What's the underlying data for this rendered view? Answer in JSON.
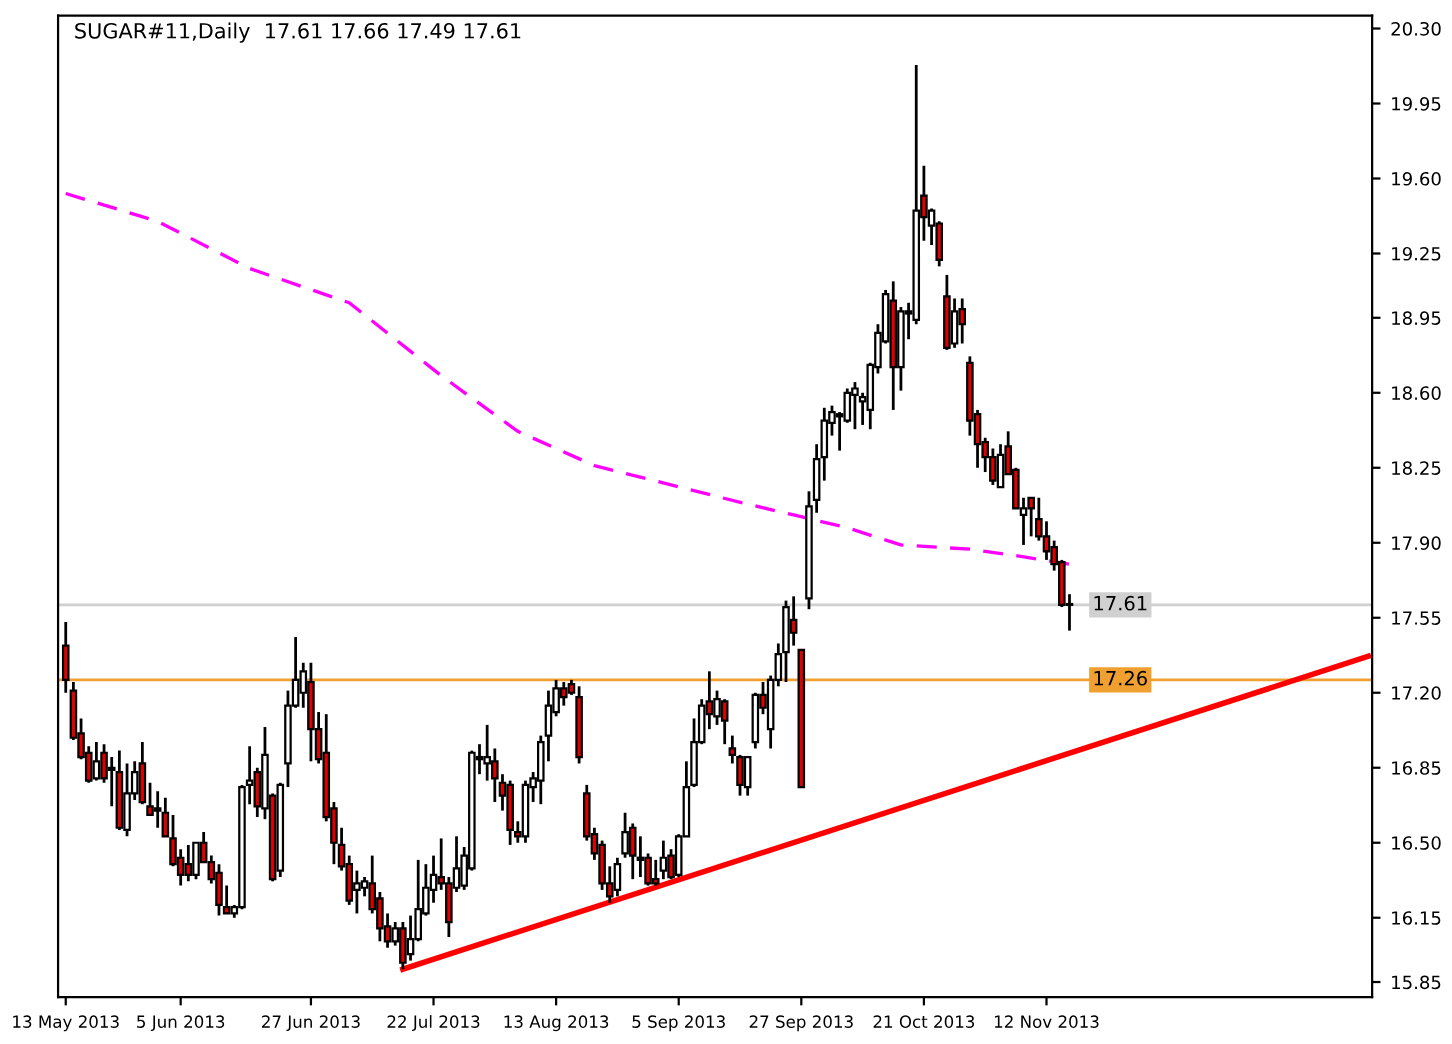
{
  "chart_data": {
    "type": "candlestick",
    "title": "SUGAR#11,Daily  17.61 17.66 17.49 17.61",
    "categories": [
      "13 May 2013",
      null,
      null,
      null,
      null,
      null,
      null,
      null,
      null,
      null,
      null,
      null,
      null,
      null,
      null,
      "5 Jun 2013",
      null,
      null,
      null,
      null,
      null,
      null,
      null,
      null,
      null,
      null,
      null,
      null,
      null,
      null,
      null,
      null,
      "27 Jun 2013",
      null,
      null,
      null,
      null,
      null,
      null,
      null,
      null,
      null,
      null,
      null,
      null,
      null,
      null,
      null,
      "22 Jul 2013",
      null,
      null,
      null,
      null,
      null,
      null,
      null,
      null,
      null,
      null,
      null,
      null,
      null,
      null,
      null,
      "13 Aug 2013",
      null,
      null,
      null,
      null,
      null,
      null,
      null,
      null,
      null,
      null,
      null,
      null,
      null,
      null,
      null,
      "5 Sep 2013",
      null,
      null,
      null,
      null,
      null,
      null,
      null,
      null,
      null,
      null,
      null,
      null,
      null,
      null,
      null,
      "27 Sep 2013",
      null,
      null,
      null,
      null,
      null,
      null,
      null,
      null,
      null,
      null,
      null,
      null,
      null,
      null,
      null,
      "21 Oct 2013",
      null,
      null,
      null,
      null,
      null,
      null,
      null,
      null,
      null,
      null,
      null,
      null,
      null,
      null,
      null,
      "12 Nov 2013",
      null,
      null,
      null,
      null,
      null,
      null,
      null,
      null,
      null,
      null,
      null,
      null,
      null,
      null,
      null,
      null,
      null,
      null,
      null,
      null,
      null,
      null,
      null,
      null,
      null,
      null,
      null,
      null,
      null,
      null,
      null,
      null,
      null,
      null,
      null,
      null,
      null,
      null,
      null,
      null,
      null,
      null
    ],
    "ohlc": [
      [
        17.42,
        17.53,
        17.2,
        17.26
      ],
      [
        17.21,
        17.25,
        16.98,
        16.99
      ],
      [
        17.01,
        17.08,
        16.89,
        16.9
      ],
      [
        16.92,
        16.95,
        16.78,
        16.79
      ],
      [
        16.8,
        16.97,
        16.79,
        16.88
      ],
      [
        16.92,
        16.96,
        16.78,
        16.8
      ],
      [
        16.84,
        16.9,
        16.67,
        16.85
      ],
      [
        16.83,
        16.93,
        16.56,
        16.57
      ],
      [
        16.56,
        16.87,
        16.53,
        16.73
      ],
      [
        16.73,
        16.88,
        16.7,
        16.83
      ],
      [
        16.87,
        16.97,
        16.68,
        16.69
      ],
      [
        16.67,
        16.78,
        16.63,
        16.63
      ],
      [
        16.66,
        16.74,
        16.57,
        16.65
      ],
      [
        16.64,
        16.71,
        16.53,
        16.53
      ],
      [
        16.52,
        16.63,
        16.39,
        16.4
      ],
      [
        16.43,
        16.47,
        16.3,
        16.35
      ],
      [
        16.4,
        16.49,
        16.32,
        16.35
      ],
      [
        16.35,
        16.5,
        16.33,
        16.5
      ],
      [
        16.5,
        16.55,
        16.41,
        16.41
      ],
      [
        16.41,
        16.44,
        16.31,
        16.33
      ],
      [
        16.36,
        16.4,
        16.16,
        16.21
      ],
      [
        16.2,
        16.3,
        16.17,
        16.17
      ],
      [
        16.17,
        16.21,
        16.15,
        16.2
      ],
      [
        16.2,
        16.77,
        16.19,
        16.76
      ],
      [
        16.77,
        16.95,
        16.68,
        16.79
      ],
      [
        16.83,
        16.85,
        16.62,
        16.67
      ],
      [
        16.66,
        17.04,
        16.61,
        16.91
      ],
      [
        16.72,
        16.73,
        16.32,
        16.33
      ],
      [
        16.37,
        16.78,
        16.34,
        16.77
      ],
      [
        16.87,
        17.21,
        16.76,
        17.14
      ],
      [
        17.14,
        17.46,
        17.13,
        17.26
      ],
      [
        17.2,
        17.34,
        17.13,
        17.3
      ],
      [
        17.25,
        17.34,
        16.88,
        17.03
      ],
      [
        17.03,
        17.11,
        16.87,
        16.89
      ],
      [
        16.92,
        17.1,
        16.6,
        16.62
      ],
      [
        16.66,
        16.69,
        16.4,
        16.5
      ],
      [
        16.49,
        16.57,
        16.37,
        16.39
      ],
      [
        16.4,
        16.44,
        16.21,
        16.23
      ],
      [
        16.28,
        16.37,
        16.17,
        16.31
      ],
      [
        16.29,
        16.34,
        16.25,
        16.32
      ],
      [
        16.31,
        16.44,
        16.17,
        16.19
      ],
      [
        16.24,
        16.27,
        16.04,
        16.1
      ],
      [
        16.11,
        16.17,
        16.01,
        16.04
      ],
      [
        16.04,
        16.13,
        16.02,
        16.1
      ],
      [
        16.1,
        16.13,
        15.91,
        15.94
      ],
      [
        15.98,
        16.16,
        15.95,
        16.05
      ],
      [
        16.05,
        16.42,
        16.04,
        16.19
      ],
      [
        16.17,
        16.4,
        16.16,
        16.29
      ],
      [
        16.28,
        16.44,
        16.22,
        16.35
      ],
      [
        16.34,
        16.52,
        16.28,
        16.31
      ],
      [
        16.31,
        16.34,
        16.06,
        16.13
      ],
      [
        16.29,
        16.53,
        16.27,
        16.38
      ],
      [
        16.3,
        16.48,
        16.28,
        16.44
      ],
      [
        16.38,
        16.93,
        16.37,
        16.92
      ],
      [
        16.89,
        16.96,
        16.82,
        16.9
      ],
      [
        16.87,
        17.05,
        16.79,
        16.9
      ],
      [
        16.88,
        16.94,
        16.69,
        16.8
      ],
      [
        16.78,
        16.82,
        16.65,
        16.72
      ],
      [
        16.77,
        16.79,
        16.49,
        16.56
      ],
      [
        16.55,
        16.6,
        16.5,
        16.53
      ],
      [
        16.53,
        16.79,
        16.5,
        16.77
      ],
      [
        16.76,
        16.83,
        16.69,
        16.8
      ],
      [
        16.79,
        17.0,
        16.68,
        16.97
      ],
      [
        17.0,
        17.21,
        16.88,
        17.14
      ],
      [
        17.11,
        17.26,
        17.09,
        17.22
      ],
      [
        17.22,
        17.25,
        17.14,
        17.18
      ],
      [
        17.24,
        17.26,
        17.19,
        17.2
      ],
      [
        17.18,
        17.23,
        16.87,
        16.9
      ],
      [
        16.73,
        16.77,
        16.51,
        16.53
      ],
      [
        16.54,
        16.57,
        16.42,
        16.45
      ],
      [
        16.49,
        16.51,
        16.28,
        16.31
      ],
      [
        16.31,
        16.39,
        16.22,
        16.25
      ],
      [
        16.28,
        16.43,
        16.25,
        16.4
      ],
      [
        16.45,
        16.64,
        16.43,
        16.55
      ],
      [
        16.57,
        16.59,
        16.33,
        16.44
      ],
      [
        16.43,
        16.53,
        16.34,
        16.42
      ],
      [
        16.43,
        16.45,
        16.3,
        16.31
      ],
      [
        16.33,
        16.42,
        16.3,
        16.31
      ],
      [
        16.37,
        16.51,
        16.33,
        16.43
      ],
      [
        16.44,
        16.47,
        16.33,
        16.34
      ],
      [
        16.35,
        16.54,
        16.34,
        16.53
      ],
      [
        16.53,
        16.88,
        16.53,
        16.76
      ],
      [
        16.77,
        17.08,
        16.76,
        16.97
      ],
      [
        16.97,
        17.17,
        16.96,
        17.14
      ],
      [
        17.16,
        17.3,
        17.03,
        17.1
      ],
      [
        17.09,
        17.21,
        17.05,
        17.17
      ],
      [
        17.16,
        17.17,
        16.96,
        17.07
      ],
      [
        16.94,
        17.0,
        16.87,
        16.91
      ],
      [
        16.9,
        16.91,
        16.72,
        16.77
      ],
      [
        16.76,
        16.9,
        16.72,
        16.9
      ],
      [
        16.97,
        17.2,
        16.94,
        17.19
      ],
      [
        17.19,
        17.25,
        17.1,
        17.13
      ],
      [
        17.03,
        17.28,
        16.94,
        17.26
      ],
      [
        17.26,
        17.43,
        17.23,
        17.38
      ],
      [
        17.39,
        17.63,
        17.25,
        17.6
      ],
      [
        17.54,
        17.65,
        17.42,
        17.48
      ],
      [
        17.4,
        17.4,
        16.76,
        16.76
      ],
      [
        17.64,
        18.14,
        17.59,
        18.07
      ],
      [
        18.1,
        18.36,
        18.04,
        18.29
      ],
      [
        18.3,
        18.53,
        18.19,
        18.47
      ],
      [
        18.46,
        18.54,
        18.4,
        18.51
      ],
      [
        18.49,
        18.51,
        18.33,
        18.5
      ],
      [
        18.47,
        18.62,
        18.46,
        18.6
      ],
      [
        18.59,
        18.65,
        18.43,
        18.62
      ],
      [
        18.56,
        18.6,
        18.45,
        18.58
      ],
      [
        18.52,
        18.74,
        18.43,
        18.73
      ],
      [
        18.72,
        18.92,
        18.69,
        18.88
      ],
      [
        18.84,
        19.08,
        18.83,
        19.06
      ],
      [
        19.03,
        19.12,
        18.52,
        18.72
      ],
      [
        18.72,
        19.0,
        18.61,
        18.98
      ],
      [
        18.97,
        19.02,
        18.85,
        18.98
      ],
      [
        18.94,
        20.13,
        18.92,
        19.45
      ],
      [
        19.52,
        19.66,
        19.31,
        19.42
      ],
      [
        19.38,
        19.46,
        19.29,
        19.45
      ],
      [
        19.39,
        19.4,
        19.19,
        19.22
      ],
      [
        19.05,
        19.15,
        18.8,
        18.81
      ],
      [
        18.83,
        19.04,
        18.81,
        18.98
      ],
      [
        18.99,
        19.04,
        18.83,
        18.92
      ],
      [
        18.74,
        18.77,
        18.4,
        18.47
      ],
      [
        18.5,
        18.52,
        18.25,
        18.36
      ],
      [
        18.37,
        18.39,
        18.23,
        18.3
      ],
      [
        18.3,
        18.34,
        18.17,
        18.19
      ],
      [
        18.16,
        18.36,
        18.16,
        18.31
      ],
      [
        18.35,
        18.42,
        18.22,
        18.22
      ],
      [
        18.24,
        18.25,
        18.06,
        18.06
      ],
      [
        18.03,
        18.11,
        17.89,
        18.06
      ],
      [
        18.11,
        18.11,
        17.93,
        18.06
      ],
      [
        18.01,
        18.11,
        17.91,
        17.93
      ],
      [
        17.93,
        18.0,
        17.82,
        17.86
      ],
      [
        17.88,
        17.91,
        17.77,
        17.8
      ],
      [
        17.81,
        17.82,
        17.6,
        17.61
      ],
      [
        17.61,
        17.66,
        17.49,
        17.61
      ],
      null,
      null,
      null,
      null,
      null,
      null,
      null,
      null,
      null,
      null,
      null,
      null,
      null,
      null,
      null,
      null,
      null,
      null,
      null,
      null,
      null,
      null,
      null,
      null,
      null,
      null,
      null,
      null,
      null,
      null,
      null,
      null,
      null,
      null,
      null,
      null,
      null,
      null,
      null
    ],
    "series": [
      {
        "type": "line",
        "color": "#ff00ff",
        "line_style": "dashed",
        "values": [
          19.53,
          null,
          null,
          null,
          null,
          null,
          null,
          null,
          null,
          null,
          null,
          null,
          19.4,
          null,
          null,
          null,
          null,
          null,
          null,
          null,
          null,
          null,
          null,
          null,
          19.18,
          null,
          null,
          null,
          null,
          null,
          null,
          null,
          null,
          null,
          null,
          null,
          null,
          19.02,
          null,
          null,
          null,
          null,
          null,
          null,
          null,
          null,
          null,
          null,
          null,
          18.68,
          null,
          null,
          null,
          null,
          null,
          null,
          null,
          null,
          null,
          18.42,
          null,
          null,
          null,
          null,
          null,
          null,
          null,
          null,
          null,
          18.26,
          null,
          null,
          null,
          null,
          null,
          null,
          null,
          null,
          null,
          18.17,
          null,
          null,
          null,
          null,
          null,
          null,
          null,
          null,
          null,
          18.08,
          null,
          null,
          null,
          null,
          null,
          18.03,
          null,
          null,
          null,
          null,
          null,
          null,
          17.97,
          null,
          null,
          null,
          null,
          null,
          null,
          17.89,
          null,
          null,
          null,
          null,
          null,
          null,
          null,
          null,
          17.87,
          null,
          null,
          null,
          null,
          null,
          17.84,
          null,
          null,
          null,
          null,
          null,
          null,
          17.8,
          null,
          null,
          null,
          null,
          null,
          null,
          null,
          null,
          null,
          null,
          null,
          null,
          null,
          null,
          null,
          null,
          null,
          null,
          null,
          null,
          null,
          null,
          null,
          null,
          null,
          null,
          null,
          null,
          null,
          null,
          null,
          null,
          null,
          null,
          null,
          null,
          null,
          null,
          null
        ]
      },
      {
        "type": "line",
        "color": "#ff0000",
        "line_style": "solid",
        "values": [
          null,
          null,
          null,
          null,
          null,
          null,
          null,
          null,
          null,
          null,
          null,
          null,
          null,
          null,
          null,
          null,
          null,
          null,
          null,
          null,
          null,
          null,
          null,
          null,
          null,
          null,
          null,
          null,
          null,
          null,
          null,
          null,
          null,
          null,
          null,
          null,
          null,
          null,
          null,
          null,
          null,
          null,
          null,
          null,
          15.91,
          null,
          null,
          null,
          null,
          null,
          null,
          null,
          null,
          null,
          null,
          null,
          null,
          null,
          null,
          null,
          null,
          null,
          null,
          null,
          null,
          null,
          null,
          null,
          null,
          null,
          null,
          null,
          null,
          null,
          null,
          null,
          null,
          null,
          null,
          null,
          null,
          null,
          null,
          null,
          null,
          null,
          null,
          null,
          null,
          null,
          null,
          null,
          null,
          null,
          null,
          null,
          null,
          null,
          null,
          null,
          null,
          null,
          null,
          null,
          null,
          null,
          null,
          null,
          null,
          null,
          null,
          null,
          null,
          null,
          null,
          null,
          null,
          null,
          null,
          null,
          null,
          null,
          null,
          null,
          null,
          null,
          null,
          null,
          null,
          null,
          null,
          null,
          null,
          null,
          null,
          null,
          null,
          null,
          null,
          null,
          null,
          null,
          null,
          null,
          null,
          null,
          null,
          null,
          null,
          null,
          null,
          null,
          null,
          null,
          null,
          null,
          null,
          null,
          null,
          null,
          null,
          null,
          null,
          null,
          null,
          null,
          null,
          null,
          null,
          null,
          17.37
        ]
      }
    ],
    "ylim": [
      15.78,
      20.36
    ],
    "yticks": [
      {
        "value": 20.3,
        "label": "20.30"
      },
      {
        "value": 19.95,
        "label": "19.95"
      },
      {
        "value": 19.6,
        "label": "19.60"
      },
      {
        "value": 19.25,
        "label": "19.25"
      },
      {
        "value": 18.95,
        "label": "18.95"
      },
      {
        "value": 18.6,
        "label": "18.60"
      },
      {
        "value": 18.25,
        "label": "18.25"
      },
      {
        "value": 17.9,
        "label": "17.90"
      },
      {
        "value": 17.55,
        "label": "17.55"
      },
      {
        "value": 17.2,
        "label": "17.20"
      },
      {
        "value": 16.85,
        "label": "16.85"
      },
      {
        "value": 16.5,
        "label": "16.50"
      },
      {
        "value": 16.15,
        "label": "16.15"
      },
      {
        "value": 15.85,
        "label": "15.85"
      }
    ],
    "ref_lines": [
      {
        "axis": "y",
        "value": 17.61,
        "label": "17.61",
        "color": "#d0d0d0"
      },
      {
        "axis": "y",
        "value": 17.26,
        "label": "17.26",
        "color": "#f0a030"
      }
    ],
    "grid": false,
    "legend": false
  }
}
